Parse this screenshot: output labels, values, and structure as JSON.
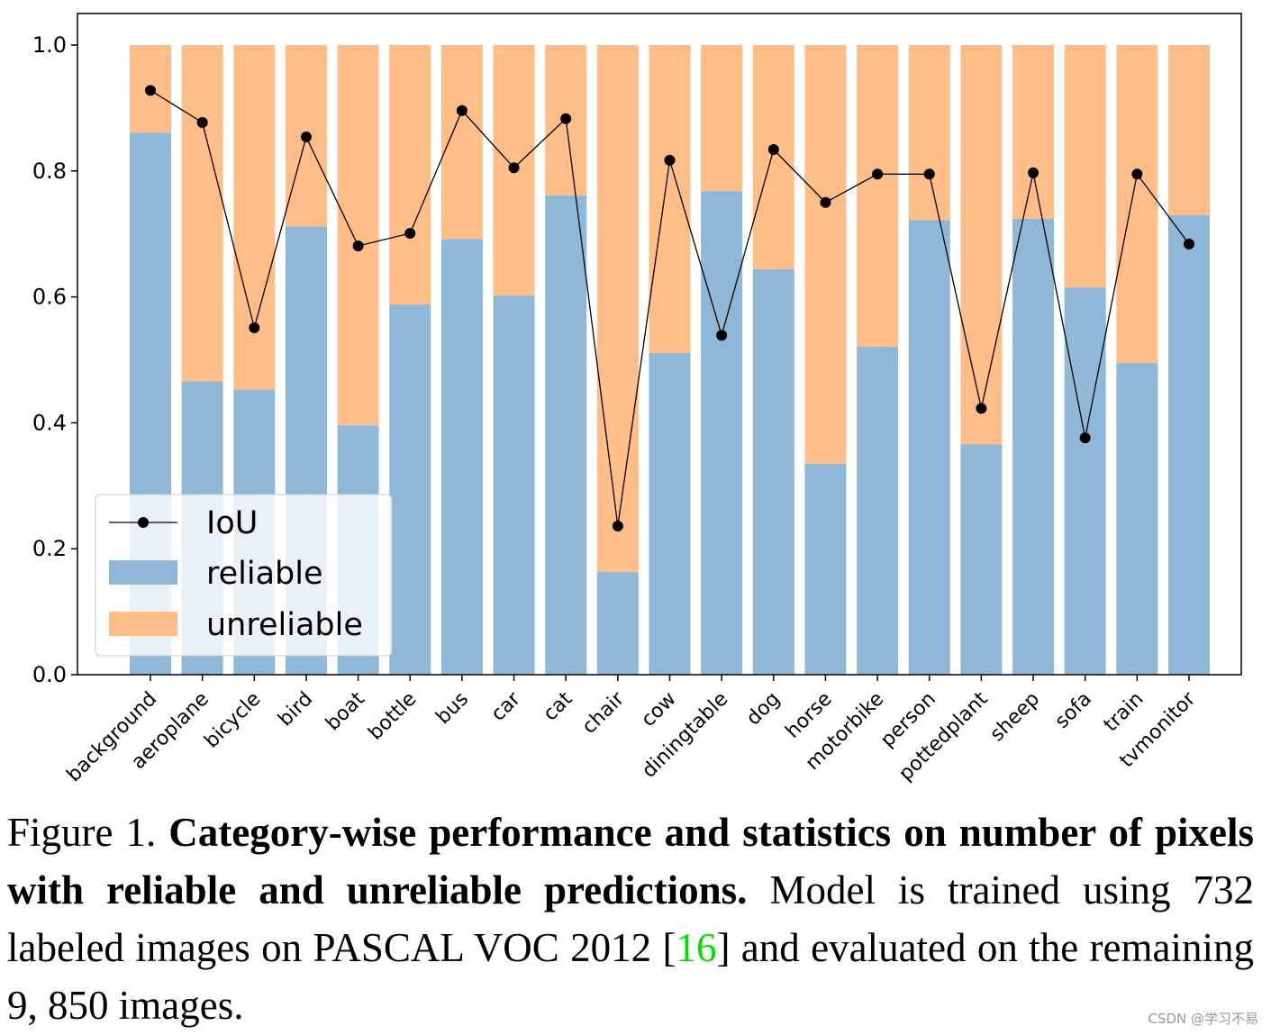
{
  "chart_data": {
    "type": "bar",
    "stacked": true,
    "categories": [
      "background",
      "aeroplane",
      "bicycle",
      "bird",
      "boat",
      "bottle",
      "bus",
      "car",
      "cat",
      "chair",
      "cow",
      "diningtable",
      "dog",
      "horse",
      "motorbike",
      "person",
      "pottedplant",
      "sheep",
      "sofa",
      "train",
      "tvmonitor"
    ],
    "series": [
      {
        "name": "reliable",
        "kind": "bar",
        "color": "#8fb8d8",
        "values": [
          0.861,
          0.466,
          0.453,
          0.712,
          0.396,
          0.588,
          0.692,
          0.602,
          0.761,
          0.163,
          0.511,
          0.768,
          0.644,
          0.335,
          0.521,
          0.722,
          0.366,
          0.724,
          0.615,
          0.495,
          0.73
        ]
      },
      {
        "name": "unreliable",
        "kind": "bar",
        "color": "#ffbd88",
        "values": [
          0.139,
          0.534,
          0.547,
          0.288,
          0.604,
          0.412,
          0.308,
          0.398,
          0.239,
          0.837,
          0.489,
          0.232,
          0.356,
          0.665,
          0.479,
          0.278,
          0.634,
          0.276,
          0.385,
          0.505,
          0.27
        ]
      },
      {
        "name": "IoU",
        "kind": "line",
        "color": "#000000",
        "values": [
          0.928,
          0.877,
          0.551,
          0.854,
          0.681,
          0.701,
          0.896,
          0.805,
          0.883,
          0.236,
          0.817,
          0.539,
          0.834,
          0.75,
          0.795,
          0.795,
          0.423,
          0.797,
          0.376,
          0.795,
          0.684
        ]
      }
    ],
    "ylim": [
      0,
      1.0
    ],
    "yticks": [
      "0.0",
      "0.2",
      "0.4",
      "0.6",
      "0.8",
      "1.0"
    ],
    "grid": false,
    "legend": "lower-left",
    "xlabel": "",
    "ylabel": ""
  },
  "caption": {
    "label": "Figure 1. ",
    "bold": "Category-wise performance and statistics on number of pixels with reliable and unreliable predictions.",
    "text1": " Model is trained using 732 labeled images on PASCAL VOC 2012 [",
    "cite": "16",
    "text2": "] and evaluated on the remaining 9, 850 images."
  },
  "watermark": "CSDN @学习不易"
}
